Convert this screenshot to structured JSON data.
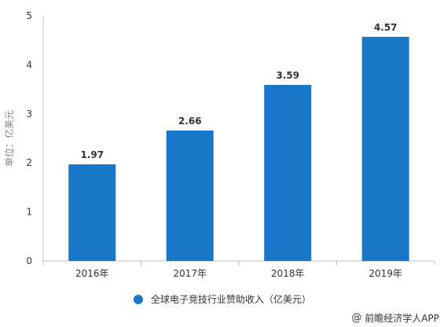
{
  "colors": {
    "bar": "#1877c9",
    "axis": "#bfbfbf",
    "grid": "#e6e6e6",
    "text": "#333333"
  },
  "chart_data": {
    "type": "bar",
    "title": "",
    "xlabel": "",
    "ylabel": "单位：亿美元",
    "categories": [
      "2016年",
      "2017年",
      "2018年",
      "2019年"
    ],
    "series": [
      {
        "name": "全球电子竞技行业赞助收入（亿美元）",
        "values": [
          1.97,
          2.66,
          3.59,
          4.57
        ]
      }
    ],
    "data_labels": [
      "1.97",
      "2.66",
      "3.59",
      "4.57"
    ],
    "ylim": [
      0,
      5
    ],
    "yticks": [
      "0",
      "1",
      "2",
      "3",
      "4",
      "5"
    ],
    "grid": false,
    "legend": "bottom-center"
  },
  "legend": {
    "label": "全球电子竞技行业赞助收入（亿美元）"
  },
  "footer": {
    "icon": "at-icon",
    "text": "前瞻经济学人APP"
  }
}
